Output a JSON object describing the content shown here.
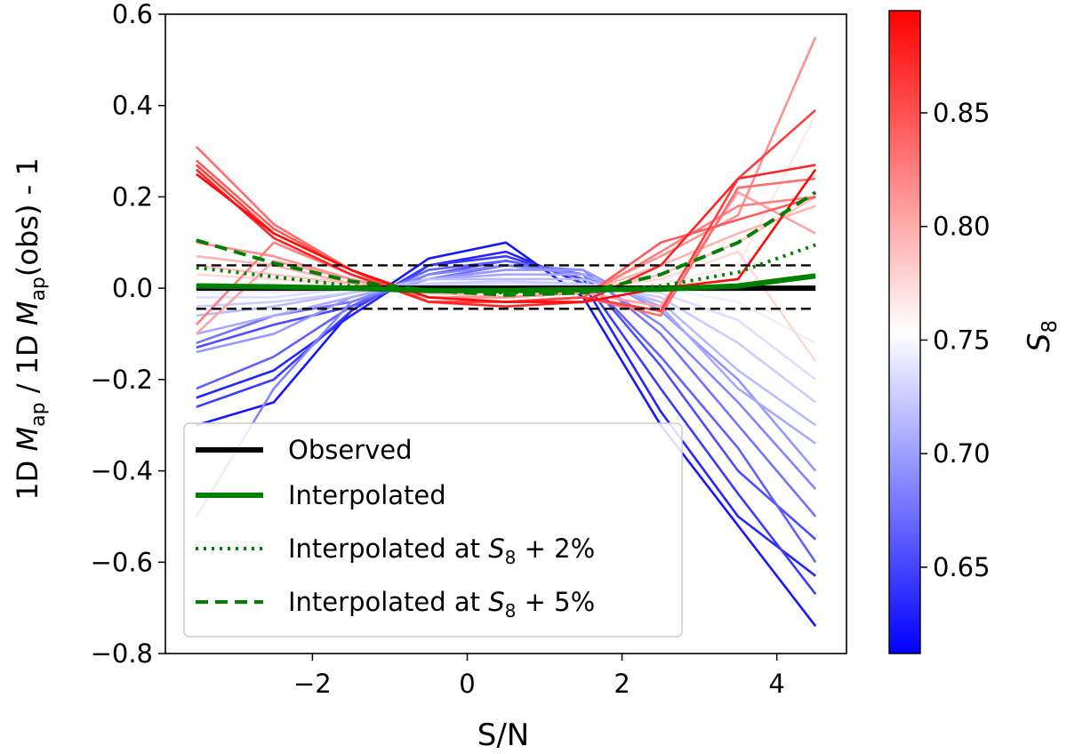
{
  "chart_data": {
    "type": "line",
    "xlabel": "S/N",
    "ylabel": {
      "pre": "1D ",
      "m1": "M",
      "sub1": "ap",
      "mid": " / 1D ",
      "m2": "M",
      "sub2": "ap",
      "post": "(obs) - 1"
    },
    "xlim": [
      -3.9,
      4.9
    ],
    "ylim": [
      -0.8,
      0.6
    ],
    "xticks": [
      -2,
      0,
      2,
      4
    ],
    "yticks": [
      -0.8,
      -0.6,
      -0.4,
      -0.2,
      0.0,
      0.2,
      0.4,
      0.6
    ],
    "x": [
      -3.5,
      -2.5,
      -1.5,
      -0.5,
      0.5,
      1.5,
      2.5,
      3.5,
      4.5
    ],
    "cmap": {
      "label": "S",
      "label_sub": "8",
      "min": 0.612,
      "max": 0.895,
      "ticks": [
        0.65,
        0.7,
        0.75,
        0.8,
        0.85
      ],
      "low_color": "#0000ff",
      "mid_color": "#ffffff",
      "high_color": "#ff0000"
    },
    "threshold_lines": [
      0.05,
      -0.045
    ],
    "series": [
      {
        "name": "S8=0.625",
        "s8": 0.625,
        "values": [
          -0.3,
          -0.25,
          -0.05,
          0.065,
          0.1,
          -0.02,
          -0.3,
          -0.52,
          -0.74
        ]
      },
      {
        "name": "S8=0.632",
        "s8": 0.632,
        "values": [
          -0.24,
          -0.18,
          -0.06,
          0.05,
          0.08,
          0.01,
          -0.27,
          -0.5,
          -0.63
        ]
      },
      {
        "name": "S8=0.645",
        "s8": 0.645,
        "values": [
          -0.26,
          -0.2,
          -0.05,
          0.05,
          0.07,
          0.02,
          -0.22,
          -0.45,
          -0.67
        ]
      },
      {
        "name": "S8=0.655",
        "s8": 0.655,
        "values": [
          -0.13,
          -0.08,
          -0.04,
          0.03,
          0.06,
          0.03,
          -0.17,
          -0.4,
          -0.55
        ]
      },
      {
        "name": "S8=0.665",
        "s8": 0.665,
        "values": [
          -0.22,
          -0.15,
          -0.04,
          0.04,
          0.06,
          0.03,
          -0.15,
          -0.35,
          -0.6
        ]
      },
      {
        "name": "S8=0.675",
        "s8": 0.675,
        "values": [
          -0.12,
          -0.06,
          -0.03,
          0.02,
          0.05,
          0.04,
          -0.1,
          -0.3,
          -0.5
        ]
      },
      {
        "name": "S8=0.685",
        "s8": 0.685,
        "values": [
          -0.5,
          -0.22,
          -0.03,
          0.03,
          0.05,
          0.03,
          -0.08,
          -0.25,
          -0.44
        ]
      },
      {
        "name": "S8=0.695",
        "s8": 0.695,
        "values": [
          -0.14,
          -0.1,
          -0.02,
          0.02,
          0.04,
          0.04,
          -0.05,
          -0.2,
          -0.4
        ]
      },
      {
        "name": "S8=0.705",
        "s8": 0.705,
        "values": [
          -0.1,
          -0.06,
          -0.02,
          0.02,
          0.03,
          0.03,
          -0.04,
          -0.22,
          -0.34
        ]
      },
      {
        "name": "S8=0.715",
        "s8": 0.715,
        "values": [
          -0.06,
          -0.04,
          -0.01,
          0.02,
          0.02,
          0.02,
          -0.03,
          -0.18,
          -0.3
        ]
      },
      {
        "name": "S8=0.725",
        "s8": 0.725,
        "values": [
          -0.04,
          -0.03,
          -0.01,
          0.01,
          0.015,
          0.01,
          -0.02,
          -0.12,
          -0.25
        ]
      },
      {
        "name": "S8=0.735",
        "s8": 0.735,
        "values": [
          -0.02,
          -0.02,
          0.0,
          0.005,
          0.01,
          0.005,
          -0.01,
          -0.07,
          -0.2
        ]
      },
      {
        "name": "S8=0.745",
        "s8": 0.745,
        "values": [
          -0.01,
          -0.01,
          0.0,
          0.0,
          0.0,
          0.0,
          0.0,
          -0.03,
          -0.12
        ]
      },
      {
        "name": "S8=0.765",
        "s8": 0.765,
        "values": [
          0.01,
          0.01,
          0.0,
          0.0,
          -0.01,
          0.0,
          0.01,
          0.05,
          0.38
        ]
      },
      {
        "name": "S8=0.775",
        "s8": 0.775,
        "values": [
          0.03,
          0.02,
          0.01,
          0.0,
          -0.01,
          0.0,
          0.02,
          0.08,
          -0.16
        ]
      },
      {
        "name": "S8=0.785",
        "s8": 0.785,
        "values": [
          0.05,
          0.03,
          0.01,
          -0.01,
          -0.01,
          -0.01,
          0.03,
          0.1,
          0.2
        ]
      },
      {
        "name": "S8=0.795",
        "s8": 0.795,
        "values": [
          0.07,
          0.05,
          0.01,
          -0.01,
          -0.02,
          -0.01,
          0.05,
          0.12,
          0.18
        ]
      },
      {
        "name": "S8=0.805",
        "s8": 0.805,
        "values": [
          -0.1,
          0.06,
          0.02,
          -0.02,
          -0.02,
          -0.01,
          -0.04,
          0.21,
          0.12
        ]
      },
      {
        "name": "S8=0.815",
        "s8": 0.815,
        "values": [
          0.1,
          0.07,
          0.02,
          -0.02,
          -0.02,
          -0.01,
          0.07,
          0.16,
          0.55
        ]
      },
      {
        "name": "S8=0.825",
        "s8": 0.825,
        "values": [
          -0.08,
          0.1,
          0.03,
          -0.02,
          -0.03,
          -0.02,
          0.08,
          0.18,
          0.2
        ]
      },
      {
        "name": "S8=0.835",
        "s8": 0.835,
        "values": [
          0.31,
          0.14,
          0.04,
          -0.03,
          -0.03,
          -0.02,
          -0.06,
          0.22,
          0.24
        ]
      },
      {
        "name": "S8=0.845",
        "s8": 0.845,
        "values": [
          0.28,
          0.13,
          0.04,
          -0.03,
          -0.03,
          -0.02,
          0.1,
          0.15,
          0.2
        ]
      },
      {
        "name": "S8=0.860",
        "s8": 0.86,
        "values": [
          0.27,
          0.12,
          0.04,
          -0.03,
          -0.03,
          -0.02,
          -0.05,
          0.24,
          0.39
        ]
      },
      {
        "name": "S8=0.875",
        "s8": 0.875,
        "values": [
          0.26,
          0.11,
          0.03,
          -0.03,
          -0.04,
          -0.03,
          0.05,
          0.24,
          0.27
        ]
      },
      {
        "name": "S8=0.890",
        "s8": 0.89,
        "values": [
          0.25,
          0.12,
          0.04,
          -0.02,
          -0.03,
          -0.03,
          0.0,
          0.02,
          0.26
        ]
      }
    ],
    "reference_series": [
      {
        "key": "observed",
        "label": "Observed",
        "color": "#000000",
        "style": "solid",
        "values": [
          0,
          0,
          0,
          0,
          0,
          0,
          0,
          0,
          0
        ]
      },
      {
        "key": "interpolated",
        "label": "Interpolated",
        "color": "#008000",
        "style": "solid",
        "values": [
          0.005,
          0.003,
          0.0,
          -0.005,
          -0.005,
          -0.003,
          -0.002,
          0.005,
          0.027
        ]
      },
      {
        "key": "interp2",
        "label_pre": "Interpolated at ",
        "label_m": "S",
        "label_sub": "8",
        "label_post": " + 2%",
        "color": "#008000",
        "style": "dotted",
        "values": [
          0.045,
          0.025,
          0.005,
          -0.005,
          -0.01,
          -0.01,
          0.005,
          0.035,
          0.095
        ]
      },
      {
        "key": "interp5",
        "label_pre": "Interpolated at ",
        "label_m": "S",
        "label_sub": "8",
        "label_post": " + 5%",
        "color": "#008000",
        "style": "dashed",
        "values": [
          0.105,
          0.055,
          0.015,
          -0.005,
          -0.015,
          -0.01,
          0.03,
          0.1,
          0.21
        ]
      }
    ]
  }
}
